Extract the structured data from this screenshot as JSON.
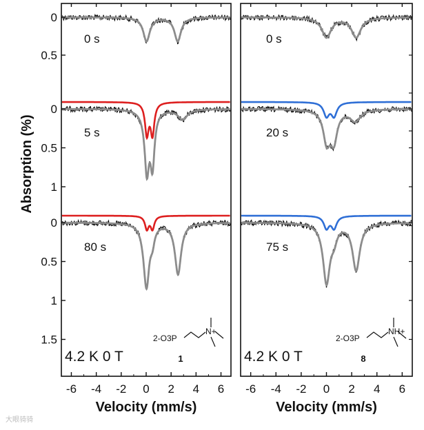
{
  "chart_data": {
    "type": "line",
    "ylabel": "Absorption (%)",
    "panels": [
      {
        "id": "left",
        "xlabel": "Velocity (mm/s)",
        "xlim": [
          -6.8,
          6.8
        ],
        "xticks": [
          -6,
          -4,
          -2,
          0,
          2,
          4,
          6
        ],
        "condition_label": "4.2 K 0 T",
        "compound": {
          "number": "1",
          "formula_left": "2-O3P",
          "head": "N+"
        },
        "traces": [
          {
            "label": "0 s",
            "ylim": [
              -0.08,
              0.68
            ],
            "yticks": [
              0,
              0.5
            ],
            "doublets": [
              {
                "center": 1.28,
                "split": 2.5,
                "width": 0.32,
                "depth": 0.6
              }
            ],
            "fit_color": "#8a8a8a"
          },
          {
            "label": "5 s",
            "ylim": [
              -0.12,
              1.45
            ],
            "yticks": [
              0,
              0.5,
              1
            ],
            "doublets": [
              {
                "center": 0.28,
                "split": 0.45,
                "width": 0.2,
                "depth": 1.25
              },
              {
                "center": 1.5,
                "split": 2.85,
                "width": 0.45,
                "depth": 0.25
              }
            ],
            "component": {
              "color": "#dd1f1f",
              "doublet_index": 0,
              "depth_scale": 0.62
            }
          },
          {
            "label": "80 s",
            "ylim": [
              -0.08,
              1.75
            ],
            "yticks": [
              0,
              0.5,
              1,
              1.5
            ],
            "doublets": [
              {
                "center": 0.28,
                "split": 0.45,
                "width": 0.2,
                "depth": 0.32
              },
              {
                "center": 1.28,
                "split": 2.55,
                "width": 0.3,
                "depth": 1.25
              }
            ],
            "component": {
              "color": "#dd1f1f",
              "doublet_index": 0,
              "depth_scale": 1.0
            }
          }
        ]
      },
      {
        "id": "right",
        "xlabel": "Velocity (mm/s)",
        "xlim": [
          -6.8,
          6.8
        ],
        "xticks": [
          -6,
          -4,
          -2,
          0,
          2,
          4,
          6
        ],
        "condition_label": "4.2 K 0 T",
        "compound": {
          "number": "8",
          "formula_left": "2-O3P",
          "head": "NH+"
        },
        "traces": [
          {
            "label": "0 s",
            "ylim": [
              -0.08,
              0.68
            ],
            "yticks": [],
            "doublets": [
              {
                "center": 1.18,
                "split": 2.35,
                "width": 0.45,
                "depth": 0.5
              }
            ]
          },
          {
            "label": "20 s",
            "ylim": [
              -0.12,
              1.45
            ],
            "yticks": [],
            "doublets": [
              {
                "center": 0.3,
                "split": 0.6,
                "width": 0.3,
                "depth": 0.6
              },
              {
                "center": 1.28,
                "split": 2.0,
                "width": 0.5,
                "depth": 0.28
              }
            ],
            "component": {
              "color": "#2f6fd6",
              "doublet_index": 0,
              "depth_scale": 0.55
            }
          },
          {
            "label": "75 s",
            "ylim": [
              -0.08,
              1.75
            ],
            "yticks": [],
            "doublets": [
              {
                "center": 0.3,
                "split": 0.6,
                "width": 0.28,
                "depth": 0.3
              },
              {
                "center": 1.18,
                "split": 2.35,
                "width": 0.35,
                "depth": 1.15
              }
            ],
            "component": {
              "color": "#2f6fd6",
              "doublet_index": 0,
              "depth_scale": 1.0
            }
          }
        ]
      }
    ]
  },
  "watermark": "大眼骑骑"
}
